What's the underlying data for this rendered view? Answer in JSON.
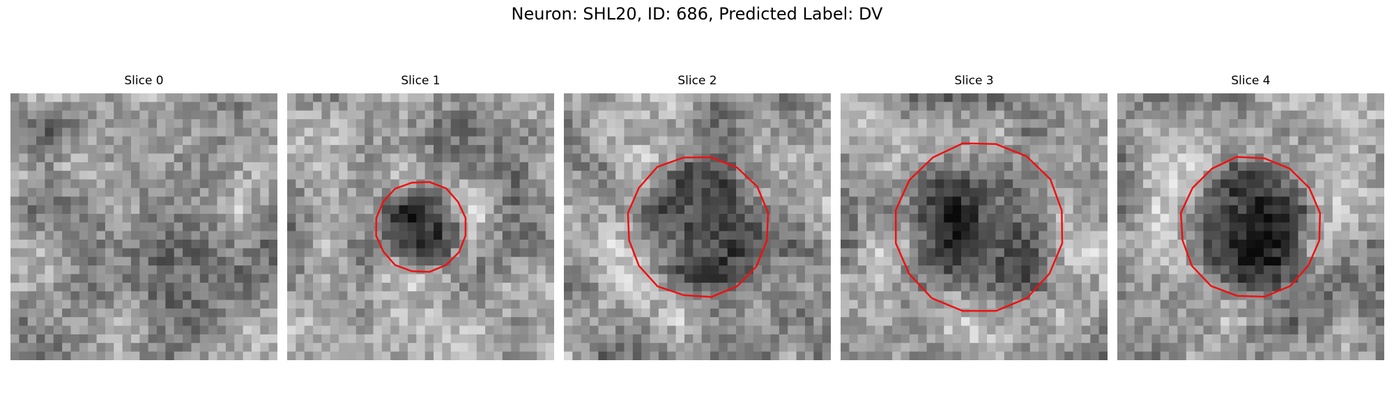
{
  "title": "Neuron: SHL20, ID: 686, Predicted Label: DV",
  "colors": {
    "contour": "#ee1111",
    "background": "#ffffff"
  },
  "panels": [
    {
      "label": "Slice 0",
      "has_contour": false,
      "dark_blob": "none"
    },
    {
      "label": "Slice 1",
      "has_contour": true,
      "dark_blob": "small"
    },
    {
      "label": "Slice 2",
      "has_contour": true,
      "dark_blob": "medium"
    },
    {
      "label": "Slice 3",
      "has_contour": true,
      "dark_blob": "large"
    },
    {
      "label": "Slice 4",
      "has_contour": true,
      "dark_blob": "medium"
    }
  ]
}
